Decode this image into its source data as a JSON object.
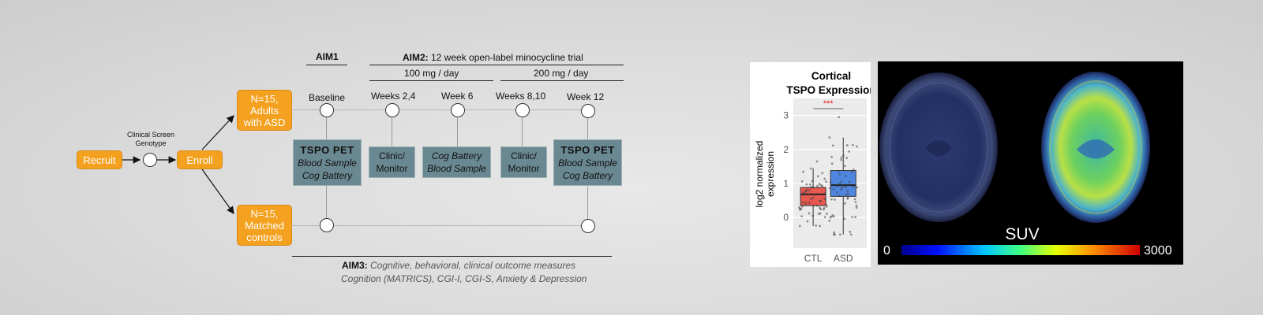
{
  "diagram": {
    "recruit": "Recruit",
    "screen_label_1": "Clinical Screen",
    "screen_label_2": "Genotype",
    "enroll": "Enroll",
    "asd_group": [
      "N=15,",
      "Adults",
      "with ASD"
    ],
    "control_group": [
      "N=15,",
      "Matched",
      "controls"
    ],
    "aim1": "AIM1",
    "aim2_bold": "AIM2:",
    "aim2_rest": " 12 week open-label minocycline trial",
    "dose_low": "100 mg / day",
    "dose_high": "200 mg / day",
    "timepoints": [
      "Baseline",
      "Weeks 2,4",
      "Week 6",
      "Weeks 8,10",
      "Week 12"
    ],
    "box_baseline": {
      "title": "TSPO PET",
      "l1": "Blood Sample",
      "l2": "Cog Battery"
    },
    "box_w24": {
      "l1": "Clinic/",
      "l2": "Monitor"
    },
    "box_w6": {
      "l1": "Cog Battery",
      "l2": "Blood Sample"
    },
    "box_w810": {
      "l1": "Clinic/",
      "l2": "Monitor"
    },
    "box_w12": {
      "title": "TSPO PET",
      "l1": "Blood Sample",
      "l2": "Cog Battery"
    },
    "aim3_bold": "AIM3:",
    "aim3_rest": " Cognitive, behavioral, clinical outcome measures",
    "aim3_line2": "Cognition (MATRICS), CGI-I, CGI-S, Anxiety & Depression"
  },
  "chart_data": {
    "type": "box",
    "title": "Cortical TSPO Expression",
    "ylabel": "log2 normalized expression",
    "categories": [
      "CTL",
      "ASD"
    ],
    "yticks": [
      "0",
      "1",
      "2",
      "3"
    ],
    "ylim": [
      -0.9,
      3.5
    ],
    "significance": "***",
    "series": [
      {
        "name": "CTL",
        "color": "#e8584f",
        "q1": 0.35,
        "median": 0.68,
        "q3": 0.88,
        "whisker_low": -0.25,
        "whisker_high": 1.45
      },
      {
        "name": "ASD",
        "color": "#4f86e0",
        "q1": 0.62,
        "median": 0.95,
        "q3": 1.38,
        "whisker_low": -0.5,
        "whisker_high": 2.35
      }
    ]
  },
  "pet_image": {
    "scale_label": "SUV",
    "scale_min": "0",
    "scale_max": "3000"
  }
}
